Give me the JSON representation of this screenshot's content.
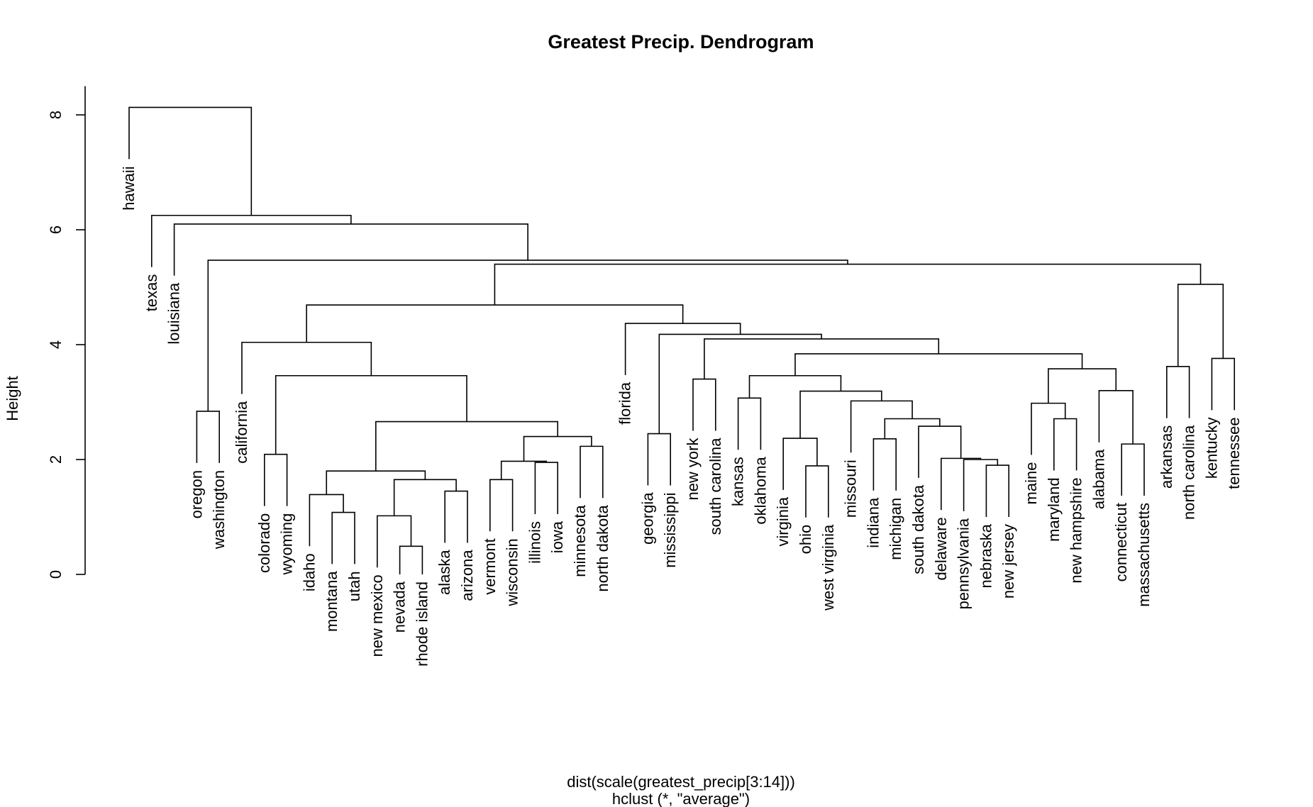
{
  "title": "Greatest Precip. Dendrogram",
  "ylabel": "Height",
  "sub_line1": "dist(scale(greatest_precip[3:14]))",
  "sub_line2": "hclust (*, \"average\")",
  "yticks": [
    0,
    2,
    4,
    6,
    8
  ],
  "ylim": [
    0,
    8.5
  ],
  "colors": {
    "line": "#000000",
    "background": "#ffffff"
  },
  "leaves": [
    "hawaii",
    "texas",
    "louisiana",
    "oregon",
    "washington",
    "california",
    "colorado",
    "wyoming",
    "idaho",
    "montana",
    "utah",
    "new mexico",
    "nevada",
    "rhode island",
    "alaska",
    "arizona",
    "vermont",
    "wisconsin",
    "illinois",
    "iowa",
    "minnesota",
    "north dakota",
    "florida",
    "georgia",
    "mississippi",
    "new york",
    "south carolina",
    "kansas",
    "oklahoma",
    "virginia",
    "ohio",
    "west virginia",
    "missouri",
    "indiana",
    "michigan",
    "south dakota",
    "delaware",
    "pennsylvania",
    "nebraska",
    "new jersey",
    "maine",
    "maryland",
    "new hampshire",
    "alabama",
    "connecticut",
    "massachusetts",
    "arkansas",
    "north carolina",
    "kentucky",
    "tennessee"
  ],
  "merges": [
    {
      "id": "C1",
      "left": "nevada",
      "right": "rhode island",
      "height": 0.49
    },
    {
      "id": "C2",
      "left": "new mexico",
      "right": "C1",
      "height": 1.02
    },
    {
      "id": "C3",
      "left": "montana",
      "right": "utah",
      "height": 1.08
    },
    {
      "id": "C4",
      "left": "idaho",
      "right": "C3",
      "height": 1.39
    },
    {
      "id": "C5",
      "left": "alaska",
      "right": "arizona",
      "height": 1.45
    },
    {
      "id": "C6",
      "left": "C2",
      "right": "C5",
      "height": 1.65
    },
    {
      "id": "C7",
      "left": "C4",
      "right": "C6",
      "height": 1.8
    },
    {
      "id": "C8",
      "left": "vermont",
      "right": "wisconsin",
      "height": 1.65
    },
    {
      "id": "C9",
      "left": "illinois",
      "right": "iowa",
      "height": 1.95
    },
    {
      "id": "C10",
      "left": "C8",
      "right": "C9",
      "height": 1.97
    },
    {
      "id": "C11",
      "left": "minnesota",
      "right": "north dakota",
      "height": 2.23
    },
    {
      "id": "C12",
      "left": "C10",
      "right": "C11",
      "height": 2.4
    },
    {
      "id": "C13",
      "left": "C7",
      "right": "C12",
      "height": 2.66
    },
    {
      "id": "C14",
      "left": "colorado",
      "right": "wyoming",
      "height": 2.09
    },
    {
      "id": "C15",
      "left": "C14",
      "right": "C13",
      "height": 3.46
    },
    {
      "id": "C16",
      "left": "california",
      "right": "C15",
      "height": 4.04
    },
    {
      "id": "C17",
      "left": "georgia",
      "right": "mississippi",
      "height": 2.45
    },
    {
      "id": "C18",
      "left": "new york",
      "right": "south carolina",
      "height": 3.4
    },
    {
      "id": "C19",
      "left": "kansas",
      "right": "oklahoma",
      "height": 3.07
    },
    {
      "id": "C20",
      "left": "ohio",
      "right": "west virginia",
      "height": 1.89
    },
    {
      "id": "C21",
      "left": "virginia",
      "right": "C20",
      "height": 2.37
    },
    {
      "id": "C22",
      "left": "nebraska",
      "right": "new jersey",
      "height": 1.9
    },
    {
      "id": "C23",
      "left": "pennsylvania",
      "right": "C22",
      "height": 2.0
    },
    {
      "id": "C24",
      "left": "delaware",
      "right": "C23",
      "height": 2.02
    },
    {
      "id": "C25",
      "left": "south dakota",
      "right": "C24",
      "height": 2.58
    },
    {
      "id": "C26",
      "left": "indiana",
      "right": "michigan",
      "height": 2.36
    },
    {
      "id": "C27",
      "left": "C26",
      "right": "C25",
      "height": 2.71
    },
    {
      "id": "C28",
      "left": "missouri",
      "right": "C27",
      "height": 3.02
    },
    {
      "id": "C29",
      "left": "C21",
      "right": "C28",
      "height": 3.19
    },
    {
      "id": "C30",
      "left": "C19",
      "right": "C29",
      "height": 3.46
    },
    {
      "id": "C31",
      "left": "new hampshire",
      "right": "maryland",
      "height": 2.71
    },
    {
      "id": "C32",
      "left": "maine",
      "right": "C31",
      "height": 2.98
    },
    {
      "id": "C33",
      "left": "connecticut",
      "right": "massachusetts",
      "height": 2.27
    },
    {
      "id": "C34",
      "left": "alabama",
      "right": "C33",
      "height": 3.2
    },
    {
      "id": "C35",
      "left": "C32",
      "right": "C34",
      "height": 3.58
    },
    {
      "id": "C36",
      "left": "C30",
      "right": "C35",
      "height": 3.84
    },
    {
      "id": "C37",
      "left": "C18",
      "right": "C36",
      "height": 4.1
    },
    {
      "id": "C38",
      "left": "C17",
      "right": "C37",
      "height": 4.18
    },
    {
      "id": "C39",
      "left": "florida",
      "right": "C38",
      "height": 4.37
    },
    {
      "id": "C40",
      "left": "C16",
      "right": "C39",
      "height": 4.69
    },
    {
      "id": "C41",
      "left": "arkansas",
      "right": "north carolina",
      "height": 3.62
    },
    {
      "id": "C42",
      "left": "kentucky",
      "right": "tennessee",
      "height": 3.76
    },
    {
      "id": "C43",
      "left": "C41",
      "right": "C42",
      "height": 5.05
    },
    {
      "id": "C44",
      "left": "C40",
      "right": "C43",
      "height": 5.4
    },
    {
      "id": "C45",
      "left": "oregon",
      "right": "washington",
      "height": 2.84
    },
    {
      "id": "C46",
      "left": "C45",
      "right": "C44",
      "height": 5.47
    },
    {
      "id": "C47",
      "left": "louisiana",
      "right": "C46",
      "height": 6.1
    },
    {
      "id": "C48",
      "left": "texas",
      "right": "C47",
      "height": 6.25
    },
    {
      "id": "C49",
      "left": "hawaii",
      "right": "C48",
      "height": 8.13
    }
  ]
}
